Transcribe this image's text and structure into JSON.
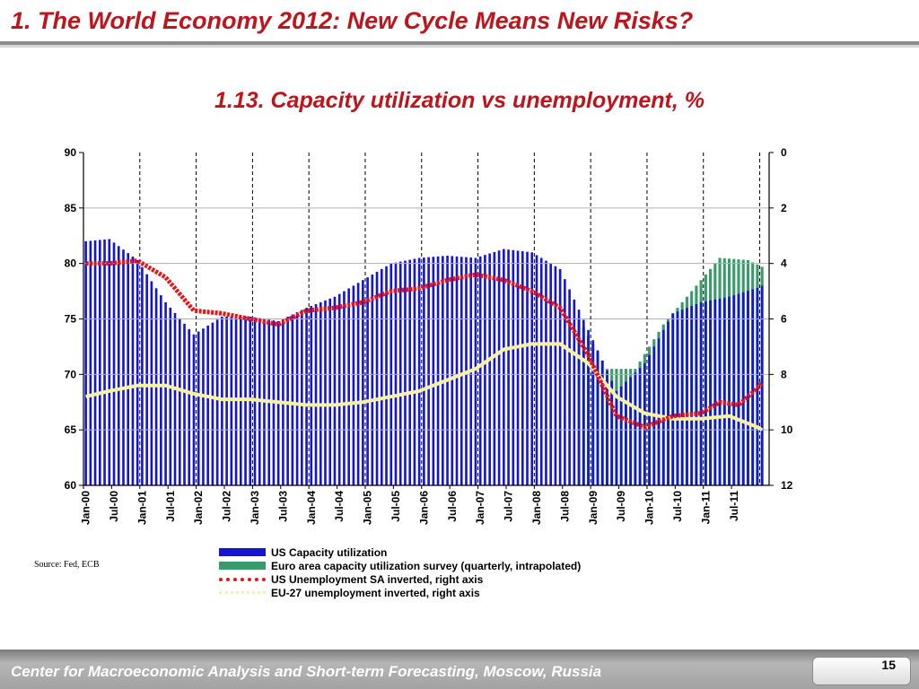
{
  "slide": {
    "header_title": "1. The World Economy 2012: New Cycle Means New Risks?",
    "source": "Source: Fed, ECB",
    "footer": "Center for Macroeconomic Analysis and Short-term Forecasting, Moscow, Russia",
    "page_number": "15"
  },
  "colors": {
    "title": "#c0141c",
    "us_bars": "#1414d6",
    "eu_bars": "#3a9a6a",
    "us_unemployment": "#ee1111",
    "eu_unemployment": "#f6f2a0",
    "grid": "#000000"
  },
  "chart_data": {
    "type": "bar",
    "title": "1.13. Capacity utilization vs unemployment, %",
    "x_start": "2000-01",
    "x_end": "2012-02",
    "x_tick_labels": [
      "Jan-00",
      "Jul-00",
      "Jan-01",
      "Jul-01",
      "Jan-02",
      "Jul-02",
      "Jan-03",
      "Jul-03",
      "Jan-04",
      "Jul-04",
      "Jan-05",
      "Jul-05",
      "Jan-06",
      "Jul-06",
      "Jan-07",
      "Jul-07",
      "Jan-08",
      "Jul-08",
      "Jan-09",
      "Jul-09",
      "Jan-10",
      "Jul-10",
      "Jan-11",
      "Jul-11"
    ],
    "y_left": {
      "min": 60,
      "max": 90,
      "ticks": [
        "90",
        "85",
        "80",
        "75",
        "70",
        "65",
        "60"
      ]
    },
    "y_right": {
      "min": 0,
      "max": 12,
      "inverted": true,
      "ticks": [
        "0",
        "2",
        "4",
        "6",
        "8",
        "10",
        "12"
      ]
    },
    "vertical_dashed_gridlines": "at each January",
    "series": [
      {
        "name": "US Capacity utilization",
        "kind": "bar",
        "axis": "left",
        "points": [
          [
            "2000-01",
            82.0
          ],
          [
            "2000-06",
            82.2
          ],
          [
            "2000-12",
            80.3
          ],
          [
            "2001-06",
            76.5
          ],
          [
            "2001-12",
            73.6
          ],
          [
            "2002-06",
            75.2
          ],
          [
            "2002-12",
            75.2
          ],
          [
            "2003-06",
            74.8
          ],
          [
            "2003-12",
            76.0
          ],
          [
            "2004-06",
            77.0
          ],
          [
            "2004-12",
            78.5
          ],
          [
            "2005-06",
            80.0
          ],
          [
            "2005-12",
            80.5
          ],
          [
            "2006-06",
            80.7
          ],
          [
            "2006-12",
            80.5
          ],
          [
            "2007-06",
            81.3
          ],
          [
            "2007-12",
            81.0
          ],
          [
            "2008-06",
            79.5
          ],
          [
            "2008-12",
            74.0
          ],
          [
            "2009-06",
            68.5
          ],
          [
            "2009-12",
            71.0
          ],
          [
            "2010-06",
            75.5
          ],
          [
            "2010-12",
            76.5
          ],
          [
            "2011-06",
            77.0
          ],
          [
            "2011-12",
            77.8
          ],
          [
            "2012-01",
            78.0
          ]
        ]
      },
      {
        "name": "Euro area capacity utilization survey (quarterly, intrapolated)",
        "kind": "bar",
        "axis": "left",
        "points": [
          [
            "2008-10",
            75.0
          ],
          [
            "2009-04",
            70.5
          ],
          [
            "2009-10",
            70.5
          ],
          [
            "2010-04",
            74.5
          ],
          [
            "2010-10",
            77.5
          ],
          [
            "2011-04",
            80.5
          ],
          [
            "2011-10",
            80.3
          ],
          [
            "2012-01",
            79.7
          ]
        ]
      },
      {
        "name": "US Unemployment SA inverted, right axis",
        "kind": "line",
        "axis": "right",
        "points": [
          [
            "2000-01",
            4.0
          ],
          [
            "2000-06",
            4.0
          ],
          [
            "2000-12",
            3.9
          ],
          [
            "2001-06",
            4.5
          ],
          [
            "2001-12",
            5.7
          ],
          [
            "2002-06",
            5.8
          ],
          [
            "2002-12",
            6.0
          ],
          [
            "2003-06",
            6.2
          ],
          [
            "2003-12",
            5.7
          ],
          [
            "2004-06",
            5.6
          ],
          [
            "2004-12",
            5.4
          ],
          [
            "2005-06",
            5.0
          ],
          [
            "2005-12",
            4.9
          ],
          [
            "2006-06",
            4.6
          ],
          [
            "2006-12",
            4.4
          ],
          [
            "2007-06",
            4.6
          ],
          [
            "2007-12",
            5.0
          ],
          [
            "2008-06",
            5.6
          ],
          [
            "2008-12",
            7.3
          ],
          [
            "2009-06",
            9.5
          ],
          [
            "2009-12",
            9.9
          ],
          [
            "2010-06",
            9.5
          ],
          [
            "2010-12",
            9.4
          ],
          [
            "2011-04",
            9.0
          ],
          [
            "2011-08",
            9.1
          ],
          [
            "2011-12",
            8.5
          ],
          [
            "2012-01",
            8.3
          ]
        ]
      },
      {
        "name": "EU-27 unemployment inverted, right axis",
        "kind": "line",
        "axis": "right",
        "points": [
          [
            "2000-01",
            8.8
          ],
          [
            "2000-06",
            8.6
          ],
          [
            "2000-12",
            8.4
          ],
          [
            "2001-06",
            8.4
          ],
          [
            "2001-12",
            8.7
          ],
          [
            "2002-06",
            8.9
          ],
          [
            "2002-12",
            8.9
          ],
          [
            "2003-06",
            9.0
          ],
          [
            "2003-12",
            9.1
          ],
          [
            "2004-06",
            9.1
          ],
          [
            "2004-12",
            9.0
          ],
          [
            "2005-06",
            8.8
          ],
          [
            "2005-12",
            8.6
          ],
          [
            "2006-06",
            8.2
          ],
          [
            "2006-12",
            7.8
          ],
          [
            "2007-06",
            7.1
          ],
          [
            "2007-12",
            6.9
          ],
          [
            "2008-06",
            6.9
          ],
          [
            "2008-12",
            7.6
          ],
          [
            "2009-06",
            8.8
          ],
          [
            "2009-12",
            9.4
          ],
          [
            "2010-06",
            9.6
          ],
          [
            "2010-12",
            9.6
          ],
          [
            "2011-06",
            9.5
          ],
          [
            "2011-12",
            9.9
          ],
          [
            "2012-01",
            10.0
          ]
        ]
      }
    ]
  }
}
